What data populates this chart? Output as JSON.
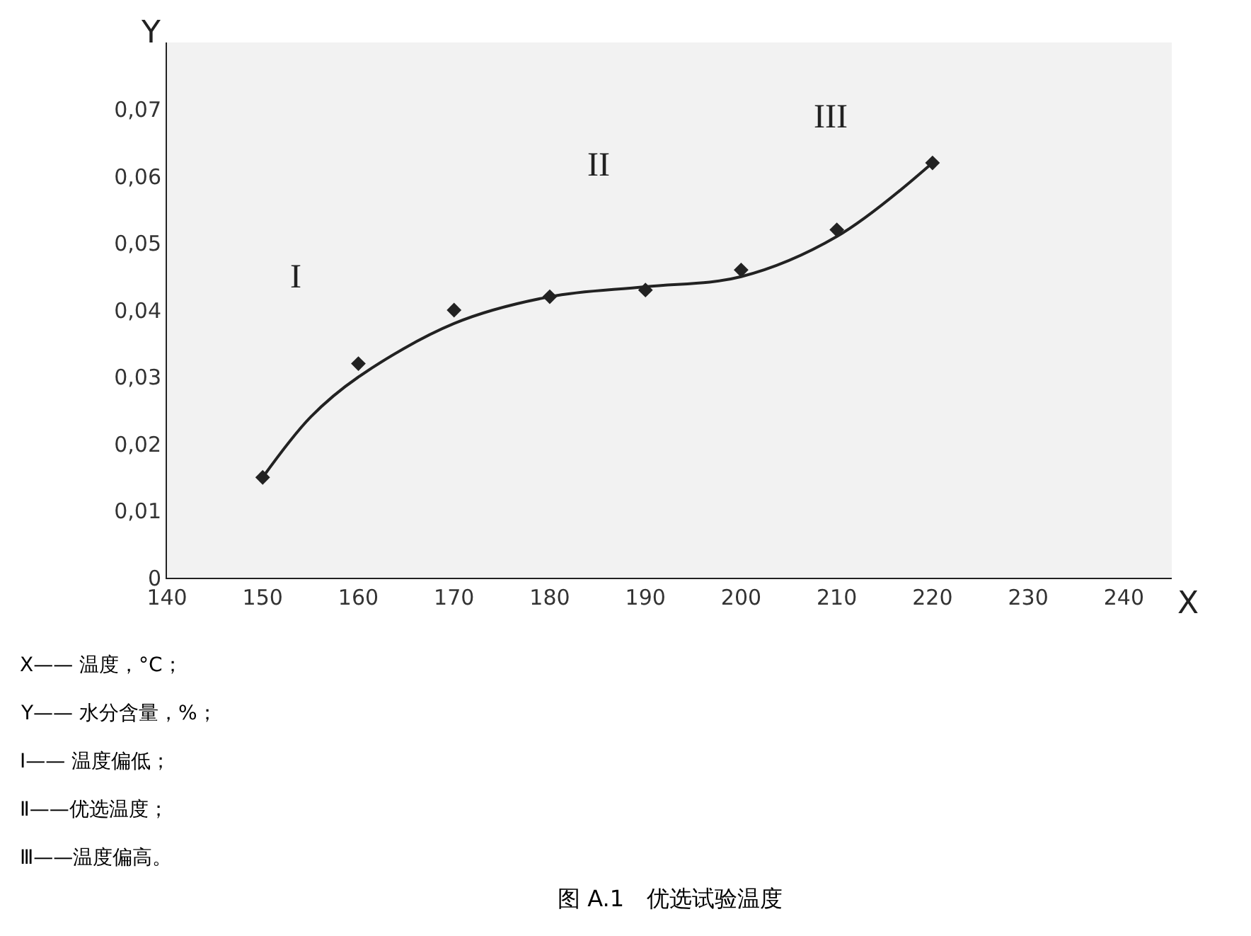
{
  "chart_data": {
    "type": "scatter",
    "title": "图 A.1　优选试验温度",
    "xlabel": "X",
    "ylabel": "Y",
    "x": [
      150,
      160,
      170,
      180,
      190,
      200,
      210,
      220
    ],
    "series": [
      {
        "color": "#222222",
        "marker": "diamond",
        "values": [
          0.015,
          0.032,
          0.04,
          0.042,
          0.043,
          0.046,
          0.052,
          0.062
        ]
      },
      {
        "type": "line",
        "color": "#222222",
        "x": [
          150,
          155,
          160,
          170,
          180,
          190,
          200,
          210,
          220
        ],
        "values": [
          0.015,
          0.024,
          0.03,
          0.038,
          0.042,
          0.0435,
          0.045,
          0.051,
          0.062
        ]
      }
    ],
    "xlim": [
      140,
      245
    ],
    "xticks": [
      140,
      150,
      160,
      170,
      180,
      190,
      200,
      210,
      220,
      230,
      240
    ],
    "ylim": [
      0,
      0.08
    ],
    "yticks": [
      0,
      {
        "value": 0.01,
        "label": "0,01"
      },
      {
        "value": 0.02,
        "label": "0,02"
      },
      {
        "value": 0.03,
        "label": "0,03"
      },
      {
        "value": 0.04,
        "label": "0,04"
      },
      {
        "value": 0.05,
        "label": "0,05"
      },
      {
        "value": 0.06,
        "label": "0,06"
      },
      {
        "value": 0.07,
        "label": "0,07"
      }
    ],
    "annotations": [
      "I",
      "II",
      "III",
      "X—— 温度，°C；",
      "Y—— 水分含量，%；",
      "Ⅰ—— 温度偏低；",
      "Ⅱ——优选温度；",
      "Ⅲ——温度偏高。"
    ]
  }
}
